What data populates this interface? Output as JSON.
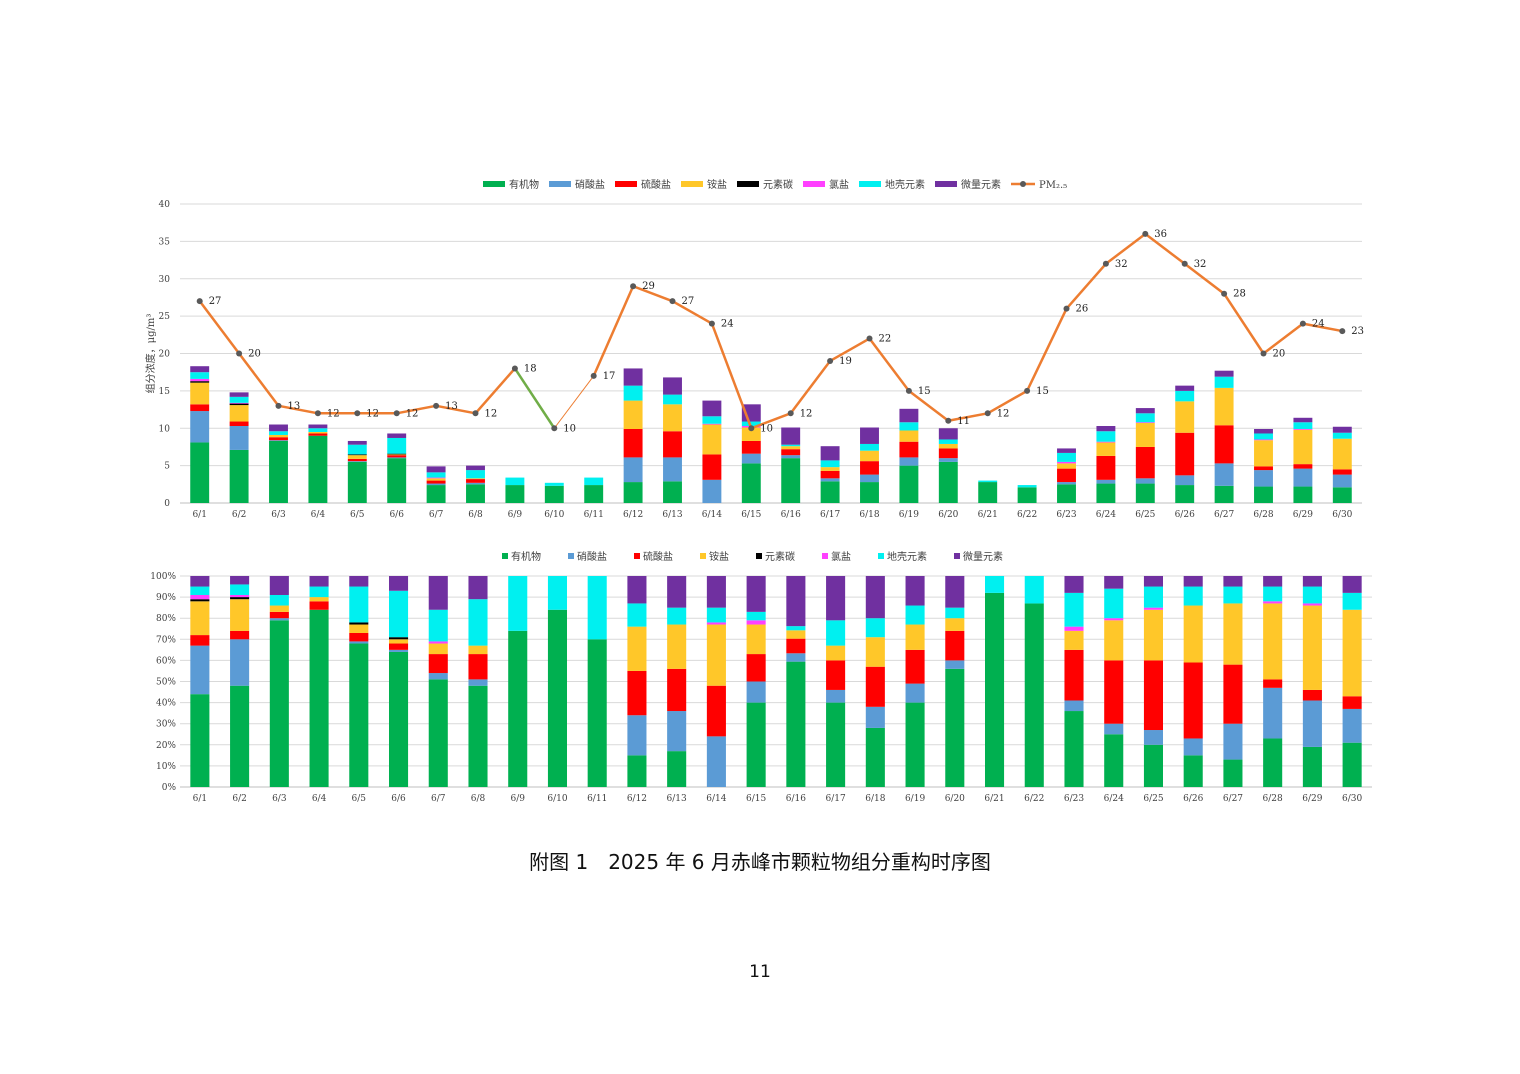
{
  "caption": "附图 1　2025 年 6 月赤峰市颗粒物组分重构时序图",
  "page_number": "11",
  "colors": {
    "有机物": "#00b050",
    "硝酸盐": "#5b9bd5",
    "硫酸盐": "#ff0000",
    "铵盐": "#ffc729",
    "元素碳": "#000000",
    "氯盐": "#ff40ff",
    "地壳元素": "#00f0f0",
    "微量元素": "#7030a0",
    "PM2.5": "#ed7d31",
    "PM2.5_marker": "#595959",
    "highlight_segment": "#70ad47"
  },
  "chart_data": [
    {
      "type": "bar",
      "stacked": true,
      "title": "",
      "ylabel": "组分浓度，μg/m³",
      "ylim": [
        0,
        40
      ],
      "yticks": [
        0,
        5,
        10,
        15,
        20,
        25,
        30,
        35,
        40
      ],
      "grid": true,
      "legend_position": "top",
      "legend": [
        "有机物",
        "硝酸盐",
        "硫酸盐",
        "铵盐",
        "元素碳",
        "氯盐",
        "地壳元素",
        "微量元素",
        "PM₂.₅"
      ],
      "categories": [
        "6/1",
        "6/2",
        "6/3",
        "6/4",
        "6/5",
        "6/6",
        "6/7",
        "6/8",
        "6/9",
        "6/10",
        "6/11",
        "6/12",
        "6/13",
        "6/14",
        "6/15",
        "6/16",
        "6/17",
        "6/18",
        "6/19",
        "6/20",
        "6/21",
        "6/22",
        "6/23",
        "6/24",
        "6/25",
        "6/26",
        "6/27",
        "6/28",
        "6/29",
        "6/30"
      ],
      "series": [
        {
          "name": "有机物",
          "values": [
            8.1,
            7.1,
            8.3,
            9.0,
            5.5,
            6.0,
            2.4,
            2.5,
            2.4,
            2.3,
            2.4,
            2.8,
            2.9,
            0.0,
            5.3,
            6.0,
            2.9,
            2.8,
            5.0,
            5.5,
            2.8,
            2.1,
            2.5,
            2.6,
            2.6,
            2.4,
            2.3,
            2.2,
            2.2,
            2.1
          ]
        },
        {
          "name": "硝酸盐",
          "values": [
            4.2,
            3.2,
            0.1,
            0.0,
            0.1,
            0.1,
            0.2,
            0.2,
            0.0,
            0.0,
            0.0,
            3.3,
            3.2,
            3.1,
            1.3,
            0.4,
            0.4,
            1.0,
            1.1,
            0.5,
            0.0,
            0.0,
            0.3,
            0.5,
            0.7,
            1.3,
            3.0,
            2.2,
            2.4,
            1.7
          ]
        },
        {
          "name": "硫酸盐",
          "values": [
            0.9,
            0.6,
            0.4,
            0.3,
            0.3,
            0.3,
            0.4,
            0.5,
            0.0,
            0.0,
            0.0,
            3.8,
            3.5,
            3.4,
            1.7,
            0.8,
            1.0,
            1.8,
            2.1,
            1.3,
            0.0,
            0.0,
            1.8,
            3.2,
            4.2,
            5.7,
            5.1,
            0.5,
            0.6,
            0.7
          ]
        },
        {
          "name": "铵盐",
          "values": [
            2.9,
            2.2,
            0.3,
            0.2,
            0.5,
            0.1,
            0.3,
            0.1,
            0.0,
            0.0,
            0.0,
            3.8,
            3.6,
            4.0,
            1.8,
            0.4,
            0.5,
            1.4,
            1.5,
            0.6,
            0.0,
            0.0,
            0.7,
            1.8,
            3.2,
            4.2,
            5.0,
            3.5,
            4.6,
            4.1
          ]
        },
        {
          "name": "元素碳",
          "values": [
            0.2,
            0.2,
            0.0,
            0.0,
            0.1,
            0.1,
            0.0,
            0.0,
            0.0,
            0.0,
            0.0,
            0.0,
            0.0,
            0.0,
            0.0,
            0.0,
            0.0,
            0.0,
            0.0,
            0.0,
            0.0,
            0.0,
            0.0,
            0.0,
            0.0,
            0.0,
            0.0,
            0.0,
            0.0,
            0.0
          ]
        },
        {
          "name": "氯盐",
          "values": [
            0.3,
            0.1,
            0.0,
            0.0,
            0.0,
            0.0,
            0.1,
            0.0,
            0.0,
            0.0,
            0.0,
            0.0,
            0.0,
            0.1,
            0.2,
            0.0,
            0.0,
            0.0,
            0.0,
            0.0,
            0.0,
            0.0,
            0.2,
            0.1,
            0.1,
            0.0,
            0.0,
            0.1,
            0.1,
            0.0
          ]
        },
        {
          "name": "地壳元素",
          "values": [
            0.9,
            0.8,
            0.5,
            0.5,
            1.3,
            2.1,
            0.7,
            1.1,
            1.0,
            0.4,
            1.0,
            2.0,
            1.3,
            1.0,
            0.6,
            0.2,
            0.9,
            0.9,
            1.1,
            0.6,
            0.2,
            0.3,
            1.2,
            1.4,
            1.2,
            1.4,
            1.5,
            0.8,
            0.9,
            0.8
          ]
        },
        {
          "name": "微量元素",
          "values": [
            0.8,
            0.6,
            0.9,
            0.5,
            0.5,
            0.6,
            0.8,
            0.6,
            0.0,
            0.0,
            0.0,
            2.3,
            2.3,
            2.1,
            2.3,
            2.3,
            1.9,
            2.2,
            1.8,
            1.5,
            0.0,
            0.0,
            0.6,
            0.7,
            0.7,
            0.7,
            0.8,
            0.6,
            0.6,
            0.8
          ]
        }
      ],
      "line": {
        "name": "PM₂.₅",
        "values": [
          27,
          20,
          13,
          12,
          12,
          12,
          13,
          12,
          18,
          10,
          17,
          29,
          27,
          24,
          10,
          12,
          19,
          22,
          15,
          11,
          12,
          15,
          26,
          32,
          36,
          32,
          28,
          20,
          24,
          23
        ],
        "labels": [
          "27",
          "20",
          "13",
          "12",
          "12",
          "12",
          "13",
          "12",
          "18",
          "10",
          "17",
          "29",
          "27",
          "24",
          "10",
          "12",
          "19",
          "22",
          "15",
          "11",
          "12",
          "15",
          "26",
          "32",
          "36",
          "32",
          "28",
          "20",
          "24",
          "23"
        ]
      }
    },
    {
      "type": "bar",
      "stacked": true,
      "percent": true,
      "title": "",
      "ylim": [
        0,
        100
      ],
      "yticks": [
        "0%",
        "10%",
        "20%",
        "30%",
        "40%",
        "50%",
        "60%",
        "70%",
        "80%",
        "90%",
        "100%"
      ],
      "grid": true,
      "legend_position": "top",
      "legend": [
        "有机物",
        "硝酸盐",
        "硫酸盐",
        "铵盐",
        "元素碳",
        "氯盐",
        "地壳元素",
        "微量元素"
      ],
      "categories": [
        "6/1",
        "6/2",
        "6/3",
        "6/4",
        "6/5",
        "6/6",
        "6/7",
        "6/8",
        "6/9",
        "6/10",
        "6/11",
        "6/12",
        "6/13",
        "6/14",
        "6/15",
        "6/16",
        "6/17",
        "6/18",
        "6/19",
        "6/20",
        "6/21",
        "6/22",
        "6/23",
        "6/24",
        "6/25",
        "6/26",
        "6/27",
        "6/28",
        "6/29",
        "6/30"
      ],
      "series": [
        {
          "name": "有机物",
          "values": [
            44,
            48,
            79,
            84,
            68,
            64,
            51,
            48,
            74,
            84,
            70,
            15,
            17,
            0,
            40,
            60,
            40,
            28,
            40,
            56,
            92,
            87,
            36,
            25,
            20,
            15,
            13,
            23,
            19,
            21
          ]
        },
        {
          "name": "硝酸盐",
          "values": [
            23,
            22,
            1,
            0,
            1,
            1,
            3,
            3,
            0,
            0,
            0,
            19,
            19,
            24,
            10,
            4,
            6,
            10,
            9,
            4,
            0,
            0,
            5,
            5,
            7,
            8,
            17,
            24,
            22,
            16
          ]
        },
        {
          "name": "硫酸盐",
          "values": [
            5,
            4,
            3,
            4,
            4,
            3,
            9,
            12,
            0,
            0,
            0,
            21,
            20,
            24,
            13,
            7,
            14,
            19,
            16,
            14,
            0,
            0,
            24,
            30,
            33,
            36,
            28,
            4,
            5,
            6
          ]
        },
        {
          "name": "铵盐",
          "values": [
            16,
            15,
            3,
            2,
            4,
            2,
            5,
            4,
            0,
            0,
            0,
            21,
            21,
            29,
            14,
            4,
            7,
            14,
            12,
            6,
            0,
            0,
            9,
            19,
            24,
            27,
            29,
            36,
            40,
            41
          ]
        },
        {
          "name": "元素碳",
          "values": [
            1,
            1,
            0,
            0,
            1,
            1,
            0,
            0,
            0,
            0,
            0,
            0,
            0,
            0,
            0,
            0,
            0,
            0,
            0,
            0,
            0,
            0,
            0,
            0,
            0,
            0,
            0,
            0,
            0,
            0
          ]
        },
        {
          "name": "氯盐",
          "values": [
            2,
            1,
            0,
            0,
            0,
            0,
            1,
            0,
            0,
            0,
            0,
            0,
            0,
            1,
            2,
            0,
            0,
            0,
            0,
            0,
            0,
            0,
            2,
            1,
            1,
            0,
            0,
            1,
            1,
            0
          ]
        },
        {
          "name": "地壳元素",
          "values": [
            4,
            5,
            5,
            5,
            17,
            22,
            15,
            22,
            26,
            16,
            30,
            11,
            8,
            7,
            4,
            2,
            12,
            9,
            9,
            5,
            8,
            13,
            16,
            14,
            10,
            9,
            8,
            7,
            8,
            8
          ]
        },
        {
          "name": "微量元素",
          "values": [
            5,
            4,
            9,
            5,
            5,
            7,
            16,
            11,
            0,
            0,
            0,
            13,
            15,
            15,
            17,
            24,
            21,
            20,
            14,
            15,
            0,
            0,
            8,
            6,
            5,
            5,
            5,
            5,
            5,
            8
          ]
        }
      ]
    }
  ]
}
